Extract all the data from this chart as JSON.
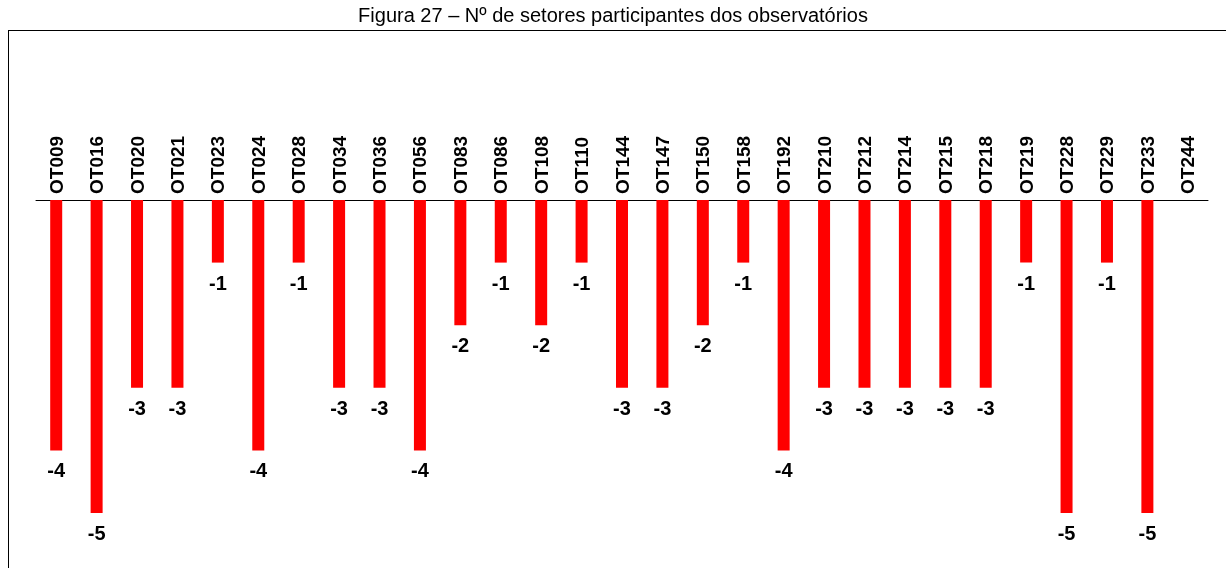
{
  "chart_data": {
    "type": "bar",
    "title": "Figura 27 – Nº de setores participantes dos observatórios",
    "categories": [
      "OT009",
      "OT016",
      "OT020",
      "OT021",
      "OT023",
      "OT024",
      "OT028",
      "OT034",
      "OT036",
      "OT056",
      "OT083",
      "OT086",
      "OT108",
      "OT110",
      "OT144",
      "OT147",
      "OT150",
      "OT158",
      "OT192",
      "OT210",
      "OT212",
      "OT214",
      "OT215",
      "OT218",
      "OT219",
      "OT228",
      "OT229",
      "OT233",
      "OT244"
    ],
    "values": [
      -4,
      -5,
      -3,
      -3,
      -1,
      -4,
      -1,
      -3,
      -3,
      -4,
      -2,
      -1,
      -2,
      -1,
      -3,
      -3,
      -2,
      -1,
      -4,
      -3,
      -3,
      -3,
      -3,
      -3,
      -1,
      -5,
      -1,
      -5,
      null
    ],
    "color": "#ff0000",
    "data_labels": true
  }
}
